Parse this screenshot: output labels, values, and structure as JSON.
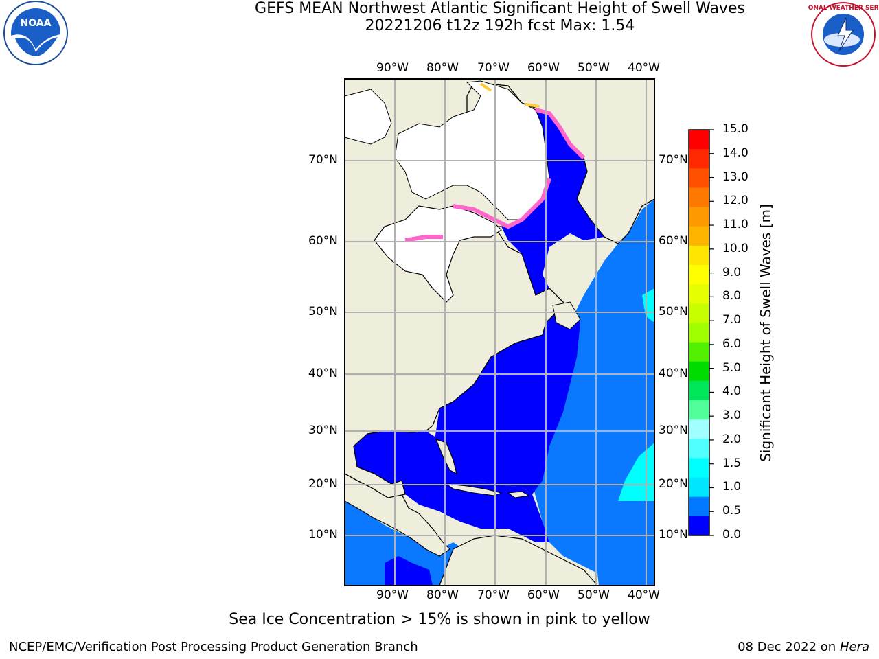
{
  "title": "GEFS MEAN Northwest Atlantic Significant Height of Swell Waves",
  "subtitle": "20221206 t12z 192h fcst   Max: 1.54",
  "map": {
    "lon_labels": [
      "90°W",
      "80°W",
      "70°W",
      "60°W",
      "50°W",
      "40°W"
    ],
    "lat_labels": [
      "70°N",
      "60°N",
      "50°N",
      "40°N",
      "30°N",
      "20°N",
      "10°N"
    ],
    "lon_values": [
      -90,
      -80,
      -70,
      -60,
      -50,
      -40
    ],
    "lat_values": [
      70,
      60,
      50,
      40,
      30,
      20,
      10
    ],
    "colors": {
      "land": "#efeedc",
      "ice_free_white": "#ffffff",
      "deep_blue": "#0000ff",
      "mid_blue": "#0a78ff",
      "cyan": "#00ffff",
      "ice_pink": "#ff66cc",
      "ice_yellow": "#ffcc33"
    }
  },
  "colorbar": {
    "title": "Significant Height of Swell Waves [m]",
    "ticks": [
      "15.0",
      "14.0",
      "13.0",
      "12.0",
      "11.0",
      "10.0",
      "9.0",
      "8.0",
      "7.0",
      "6.0",
      "5.0",
      "4.0",
      "3.0",
      "2.0",
      "1.5",
      "1.0",
      "0.5",
      "0.0"
    ],
    "colors": [
      "#ff0000",
      "#ff2800",
      "#ff5000",
      "#ff7800",
      "#ff9900",
      "#ffb400",
      "#ffe600",
      "#ffff00",
      "#e6ff00",
      "#c8ff00",
      "#a0ff00",
      "#50f000",
      "#00dc00",
      "#00e65a",
      "#50ff9a",
      "#a0ffff",
      "#50ffff",
      "#00ffff",
      "#00e6ff",
      "#0078ff",
      "#0000ff"
    ]
  },
  "logos": {
    "left_text": "NOAA",
    "right_text": "NATIONAL WEATHER SERVICE"
  },
  "footer": {
    "note": "Sea Ice Concentration > 15% is shown in pink to yellow",
    "left": "NCEP/EMC/Verification Post Processing Product Generation Branch",
    "right_date": "08 Dec 2022 on",
    "right_host": "Hera"
  }
}
